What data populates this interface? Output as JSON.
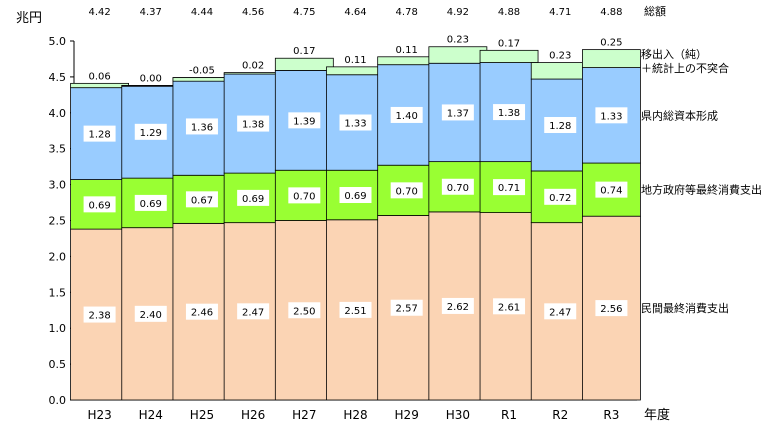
{
  "chart_data": {
    "type": "bar",
    "stacked": true,
    "y_unit": "兆円",
    "xlabel": "年度",
    "ylim": [
      0,
      5.0
    ],
    "y_ticks": [
      "0.0",
      "0.5",
      "1.0",
      "1.5",
      "2.0",
      "2.5",
      "3.0",
      "3.5",
      "4.0",
      "4.5",
      "5.0"
    ],
    "categories": [
      "H23",
      "H24",
      "H25",
      "H26",
      "H27",
      "H28",
      "H29",
      "H30",
      "R1",
      "R2",
      "R3"
    ],
    "total_label": "総額",
    "totals": [
      "4.42",
      "4.37",
      "4.44",
      "4.56",
      "4.75",
      "4.64",
      "4.78",
      "4.92",
      "4.88",
      "4.71",
      "4.88"
    ],
    "series": [
      {
        "name": "民間最終消費支出",
        "color": "#FBD4B4",
        "values": [
          2.38,
          2.4,
          2.46,
          2.47,
          2.5,
          2.51,
          2.57,
          2.62,
          2.61,
          2.47,
          2.56
        ],
        "labels": [
          "2.38",
          "2.40",
          "2.46",
          "2.47",
          "2.50",
          "2.51",
          "2.57",
          "2.62",
          "2.61",
          "2.47",
          "2.56"
        ]
      },
      {
        "name": "地方政府等最終消費支出",
        "color": "#99FF33",
        "values": [
          0.69,
          0.69,
          0.67,
          0.69,
          0.7,
          0.69,
          0.7,
          0.7,
          0.71,
          0.72,
          0.74
        ],
        "labels": [
          "0.69",
          "0.69",
          "0.67",
          "0.69",
          "0.70",
          "0.69",
          "0.70",
          "0.70",
          "0.71",
          "0.72",
          "0.74"
        ]
      },
      {
        "name": "県内総資本形成",
        "color": "#99CCFF",
        "values": [
          1.28,
          1.29,
          1.36,
          1.38,
          1.39,
          1.33,
          1.4,
          1.37,
          1.38,
          1.28,
          1.33
        ],
        "labels": [
          "1.28",
          "1.29",
          "1.36",
          "1.38",
          "1.39",
          "1.33",
          "1.40",
          "1.37",
          "1.38",
          "1.28",
          "1.33"
        ]
      },
      {
        "name": "移出入（純）＋統計上の不突合",
        "legend_lines": [
          "移出入（純）",
          "＋統計上の不突合"
        ],
        "color": "#CCFFCC",
        "values": [
          0.06,
          0.0,
          -0.05,
          0.02,
          0.17,
          0.11,
          0.11,
          0.23,
          0.17,
          0.23,
          0.25
        ],
        "labels": [
          "0.06",
          "0.00",
          "-0.05",
          "0.02",
          "0.17",
          "0.11",
          "0.11",
          "0.23",
          "0.17",
          "0.23",
          "0.25"
        ]
      }
    ],
    "grid": false,
    "legend_placement": "right"
  }
}
